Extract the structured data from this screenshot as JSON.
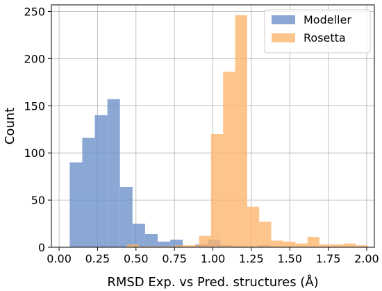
{
  "chart_data": {
    "type": "bar",
    "xlabel": "RMSD Exp. vs Pred. structures (Å)",
    "ylabel": "Count",
    "xlim": [
      -0.05,
      2.05
    ],
    "ylim": [
      0,
      257
    ],
    "x_ticks": [
      "0.00",
      "0.25",
      "0.50",
      "0.75",
      "1.00",
      "1.25",
      "1.50",
      "1.75",
      "2.00"
    ],
    "y_ticks": [
      "0",
      "50",
      "100",
      "150",
      "200",
      "250"
    ],
    "grid": true,
    "legend_position": "top-right",
    "series": [
      {
        "name": "Modeller",
        "color": "#6a8fc9",
        "opacity": 0.78,
        "bins": [
          0.069,
          0.1507,
          0.2324,
          0.3141,
          0.3958,
          0.4775,
          0.5592,
          0.6409,
          0.7226,
          0.8043,
          0.886,
          0.9677,
          1.0494,
          1.1311,
          1.2128,
          1.2945,
          1.3762
        ],
        "counts": [
          90,
          116,
          140,
          157,
          64,
          25,
          14,
          6,
          8,
          0,
          3,
          8,
          2,
          1,
          0,
          2
        ]
      },
      {
        "name": "Rosetta",
        "color": "#fdb36c",
        "opacity": 0.78,
        "bins": [
          0.44,
          0.5183,
          0.5966,
          0.6749,
          0.7532,
          0.8315,
          0.9098,
          0.9881,
          1.0664,
          1.1447,
          1.223,
          1.3013,
          1.3796,
          1.4579,
          1.5362,
          1.6145,
          1.6928,
          1.7711,
          1.8494,
          1.9277,
          2.006
        ],
        "counts": [
          3,
          1,
          1,
          1,
          2,
          2,
          12,
          120,
          186,
          246,
          43,
          27,
          7,
          6,
          4,
          11,
          3,
          3,
          4,
          2
        ]
      }
    ]
  }
}
